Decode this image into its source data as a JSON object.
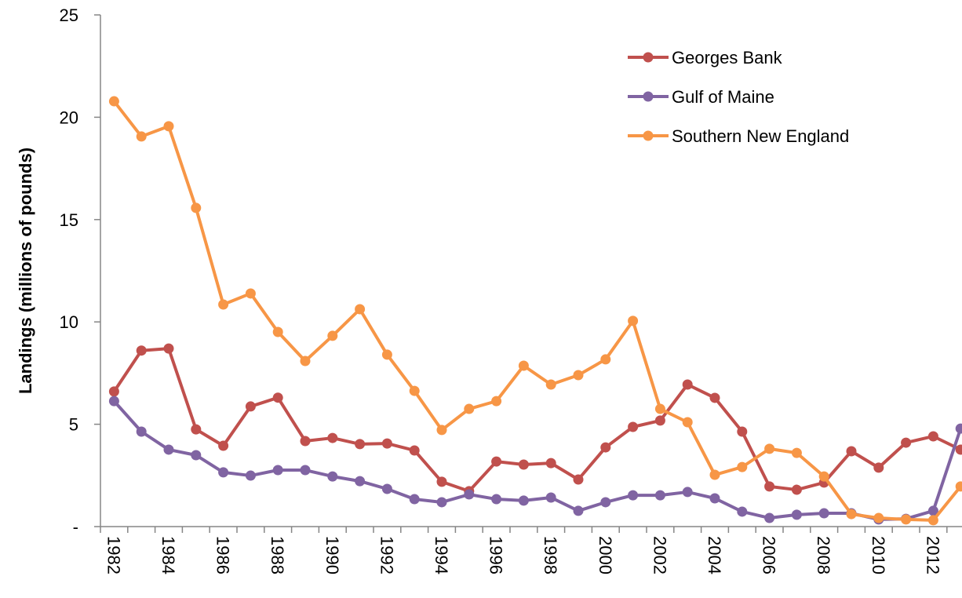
{
  "chart_data": {
    "type": "line",
    "y_label": "Landings (millions of pounds)",
    "categories": [
      "1982",
      null,
      "1984",
      null,
      "1986",
      null,
      "1988",
      null,
      "1990",
      null,
      "1992",
      null,
      "1994",
      null,
      "1996",
      null,
      "1998",
      null,
      "2000",
      null,
      "2002",
      null,
      "2004",
      null,
      "2006",
      null,
      "2008",
      null,
      "2010",
      null,
      "2012",
      null
    ],
    "series": [
      {
        "name": "Georges Bank",
        "color": "#c0504d",
        "values": [
          6.6,
          8.6,
          8.7,
          4.75,
          3.95,
          5.87,
          6.3,
          4.18,
          4.33,
          4.03,
          4.06,
          3.72,
          2.19,
          1.73,
          3.18,
          3.03,
          3.1,
          2.3,
          3.87,
          4.87,
          5.18,
          6.94,
          6.29,
          4.64,
          1.96,
          1.8,
          2.15,
          3.68,
          2.88,
          4.1,
          4.41,
          3.76
        ]
      },
      {
        "name": "Gulf of Maine",
        "color": "#8064a2",
        "values": [
          6.13,
          4.64,
          3.76,
          3.49,
          2.65,
          2.49,
          2.76,
          2.76,
          2.45,
          2.22,
          1.84,
          1.34,
          1.19,
          1.57,
          1.34,
          1.27,
          1.42,
          0.77,
          1.19,
          1.53,
          1.53,
          1.69,
          1.38,
          0.73,
          0.42,
          0.58,
          0.65,
          0.65,
          0.35,
          0.38,
          0.77,
          4.79
        ]
      },
      {
        "name": "Southern New England",
        "color": "#f79646",
        "values": [
          20.78,
          19.06,
          19.56,
          15.57,
          10.85,
          11.39,
          9.51,
          8.09,
          9.32,
          10.62,
          8.4,
          6.63,
          4.72,
          5.75,
          6.13,
          7.86,
          6.94,
          7.4,
          8.17,
          10.05,
          5.75,
          5.1,
          2.53,
          2.91,
          3.8,
          3.6,
          2.45,
          0.61,
          0.42,
          0.35,
          0.31,
          1.96
        ]
      }
    ],
    "ylim": [
      0,
      25
    ],
    "yticks": [
      {
        "value": 0,
        "label": "-"
      },
      5,
      10,
      15,
      20,
      25
    ],
    "grid": false,
    "legend": "top-right"
  }
}
